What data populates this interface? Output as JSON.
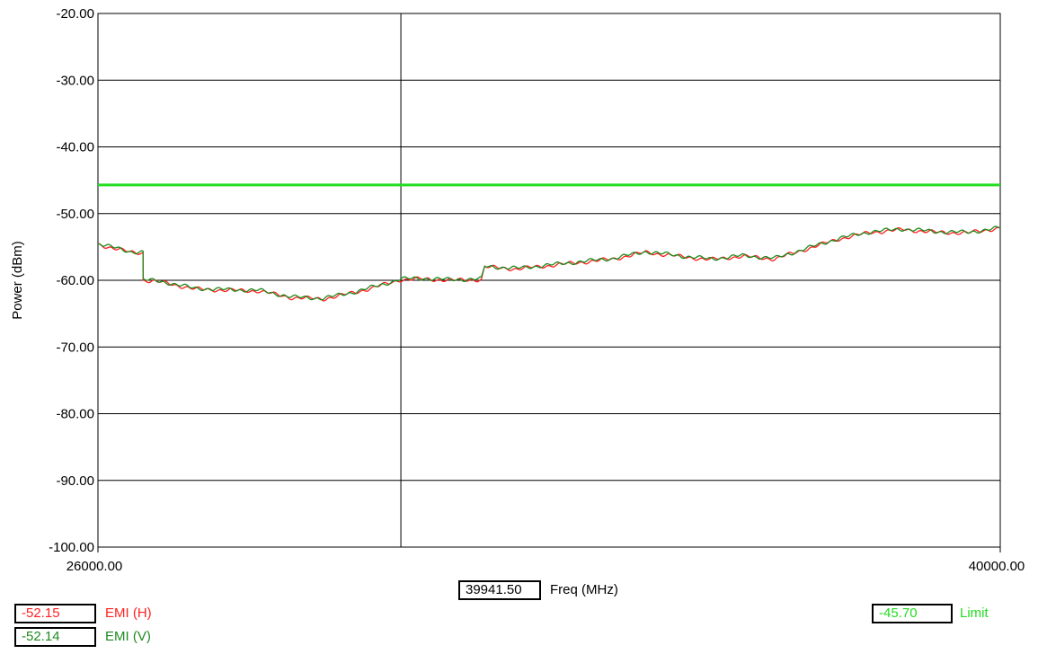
{
  "chart_data": {
    "type": "line",
    "ylabel": "Power (dBm)",
    "xlabel": "Freq (MHz)",
    "xlim": [
      26000,
      40000
    ],
    "ylim": [
      -100,
      -20
    ],
    "x_tick_labels": [
      "26000.00",
      "40000.00"
    ],
    "y_tick_labels": [
      "-20.00",
      "-30.00",
      "-40.00",
      "-50.00",
      "-60.00",
      "-70.00",
      "-80.00",
      "-90.00",
      "-100.00"
    ],
    "y_ticks": [
      -20,
      -30,
      -40,
      -50,
      -60,
      -70,
      -80,
      -90,
      -100
    ],
    "grid": true,
    "cursor_marker_freq": 30700,
    "limit_line": {
      "name": "Limit",
      "value": -45.7,
      "color": "#22dd22"
    },
    "series": [
      {
        "name": "EMI (H)",
        "color": "#ff2020",
        "x": [
          26000,
          26500,
          26700,
          26701,
          27000,
          27500,
          28000,
          28500,
          29000,
          29500,
          30000,
          30500,
          30700,
          31000,
          31500,
          31950,
          32000,
          32500,
          33000,
          33500,
          34000,
          34500,
          35000,
          35500,
          36000,
          36500,
          37000,
          37500,
          38000,
          38500,
          39000,
          39500,
          40000
        ],
        "values": [
          -54.6,
          -55.8,
          -55.9,
          -60.0,
          -60.3,
          -61.3,
          -61.5,
          -61.6,
          -62.6,
          -62.8,
          -61.8,
          -60.5,
          -59.9,
          -59.8,
          -60.0,
          -59.9,
          -58.0,
          -58.3,
          -57.8,
          -57.3,
          -56.8,
          -55.8,
          -56.4,
          -56.9,
          -56.4,
          -56.8,
          -55.3,
          -53.8,
          -52.8,
          -52.4,
          -52.8,
          -52.9,
          -52.15
        ]
      },
      {
        "name": "EMI (V)",
        "color": "#1f8a1f",
        "x": [
          26000,
          26500,
          26700,
          26701,
          27000,
          27500,
          28000,
          28500,
          29000,
          29500,
          30000,
          30500,
          30700,
          31000,
          31500,
          31950,
          32000,
          32500,
          33000,
          33500,
          34000,
          34500,
          35000,
          35500,
          36000,
          36500,
          37000,
          37500,
          38000,
          38500,
          39000,
          39500,
          40000
        ],
        "values": [
          -54.5,
          -55.7,
          -55.8,
          -59.9,
          -60.2,
          -61.2,
          -61.4,
          -61.5,
          -62.5,
          -62.7,
          -61.7,
          -60.4,
          -59.8,
          -59.7,
          -59.9,
          -59.8,
          -57.9,
          -58.2,
          -57.7,
          -57.2,
          -56.7,
          -55.7,
          -56.3,
          -56.8,
          -56.3,
          -56.7,
          -55.2,
          -53.7,
          -52.7,
          -52.3,
          -52.7,
          -52.8,
          -52.14
        ]
      }
    ]
  },
  "readouts": {
    "freq_value": "39941.50",
    "freq_label": "Freq (MHz)",
    "emi_h_value": "-52.15",
    "emi_h_label": "EMI (H)",
    "emi_v_value": "-52.14",
    "emi_v_label": "EMI (V)",
    "limit_value": "-45.70",
    "limit_label": "Limit"
  },
  "colors": {
    "emi_h": "#ff2020",
    "emi_v": "#1f8a1f",
    "limit": "#22dd22",
    "grid": "#000000"
  }
}
